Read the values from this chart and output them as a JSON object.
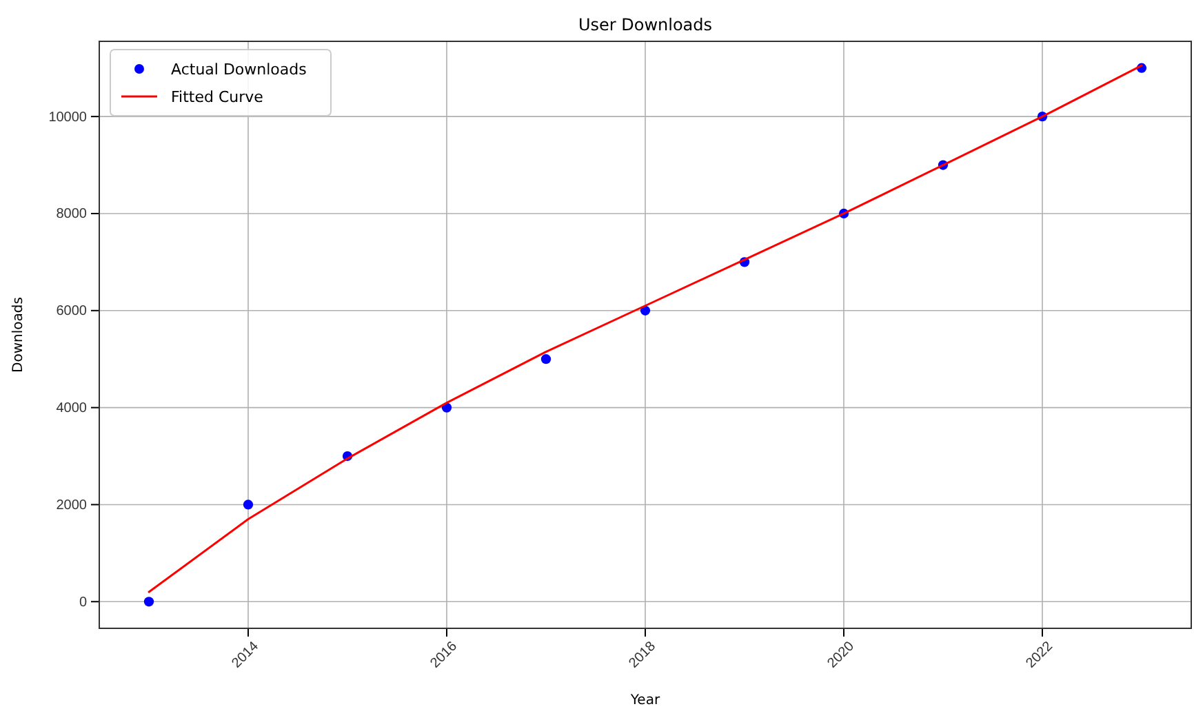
{
  "chart_data": {
    "type": "scatter",
    "title": "User Downloads",
    "xlabel": "Year",
    "ylabel": "Downloads",
    "xlim": [
      2012.5,
      2023.5
    ],
    "xticks": [
      2014,
      2016,
      2018,
      2020,
      2022
    ],
    "ylim": [
      -550,
      11550
    ],
    "yticks": [
      0,
      2000,
      4000,
      6000,
      8000,
      10000
    ],
    "grid": true,
    "legend": "top left",
    "series": [
      {
        "name": "Actual Downloads",
        "marker": "circle",
        "color": "#0000ff",
        "x": [
          2013,
          2014,
          2015,
          2016,
          2017,
          2018,
          2019,
          2020,
          2021,
          2022,
          2023
        ],
        "values": [
          0,
          2000,
          3000,
          4000,
          5000,
          6000,
          7000,
          8000,
          9000,
          10000,
          11000
        ]
      },
      {
        "name": "Fitted Curve",
        "type": "line",
        "color": "#ff0000",
        "line_style": "solid",
        "x": [
          2013,
          2014,
          2015,
          2016,
          2017,
          2018,
          2019,
          2020,
          2021,
          2022,
          2023
        ],
        "values": [
          200,
          1700,
          2950,
          4100,
          5150,
          6100,
          7050,
          8000,
          9000,
          10000,
          11050
        ]
      }
    ]
  }
}
